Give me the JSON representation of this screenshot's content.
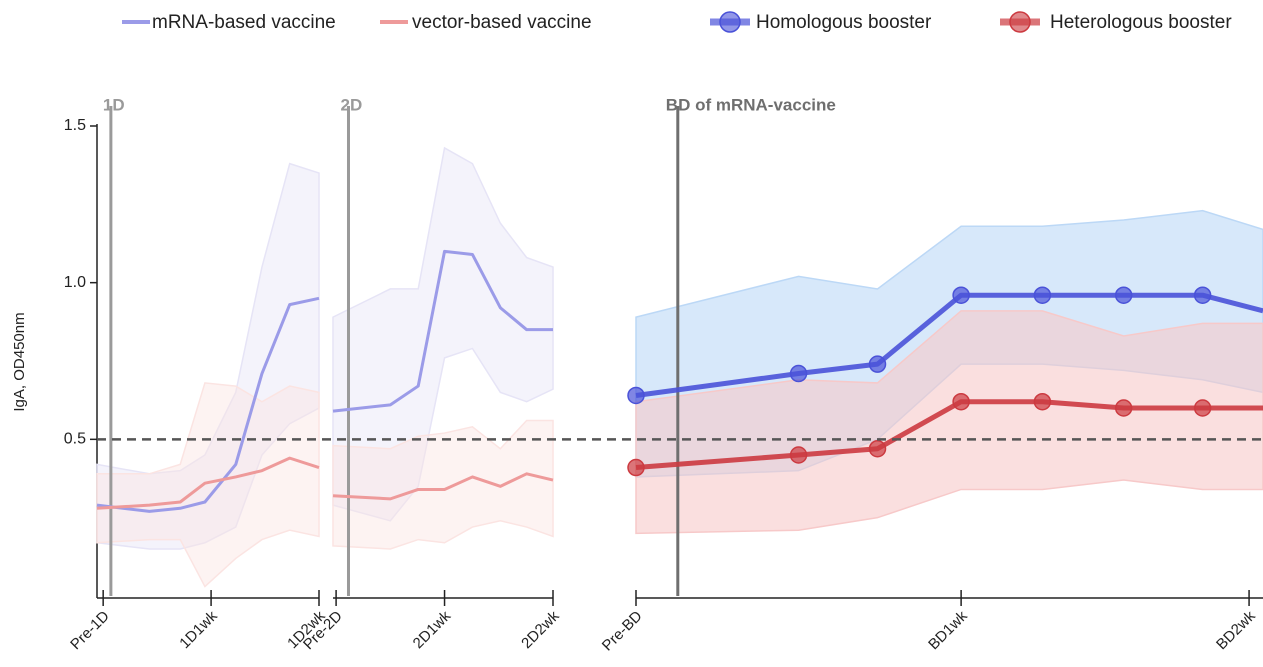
{
  "chart_data": [
    {
      "type": "line",
      "ylabel": "IgA, OD450nm",
      "ylim": [
        0,
        1.5
      ],
      "yticks": [
        0.5,
        {
          "value": 1,
          "label": "1.0"
        },
        1.5
      ],
      "reference_line": 0.5,
      "xlim": [
        -0.4,
        14
      ],
      "xticks": [
        {
          "value": 0,
          "label": "Pre-1D"
        },
        {
          "value": 7,
          "label": "1D1wk"
        },
        {
          "value": 14,
          "label": "1D2wk"
        }
      ],
      "vline": {
        "x": 0.5,
        "label": "1D",
        "color": "#9a9a9a"
      },
      "series": [
        {
          "name": "mRNA-based vaccine",
          "color": "#9b9be8",
          "band_color": "#e6e4f6",
          "x": [
            -0.4,
            3.0,
            5.0,
            6.6,
            8.6,
            10.3,
            12.1,
            14.0
          ],
          "values": [
            0.29,
            0.27,
            0.28,
            0.3,
            0.42,
            0.71,
            0.93,
            0.95
          ],
          "upper": [
            0.42,
            0.39,
            0.4,
            0.45,
            0.65,
            1.05,
            1.38,
            1.35
          ],
          "lower": [
            0.17,
            0.15,
            0.15,
            0.17,
            0.22,
            0.45,
            0.55,
            0.6
          ]
        },
        {
          "name": "vector-based vaccine",
          "color": "#ee9a9a",
          "band_color": "#fbe4e2",
          "x": [
            -0.4,
            3.0,
            5.0,
            6.6,
            8.6,
            10.3,
            12.1,
            14.0
          ],
          "values": [
            0.28,
            0.29,
            0.3,
            0.36,
            0.38,
            0.4,
            0.44,
            0.41
          ],
          "upper": [
            0.39,
            0.39,
            0.42,
            0.68,
            0.67,
            0.62,
            0.67,
            0.65
          ],
          "lower": [
            0.17,
            0.18,
            0.18,
            0.03,
            0.12,
            0.18,
            0.21,
            0.19
          ]
        }
      ]
    },
    {
      "type": "line",
      "ylim": [
        0,
        1.5
      ],
      "xlim": [
        -0.2,
        14
      ],
      "xticks": [
        {
          "value": 0,
          "label": "Pre-2D"
        },
        {
          "value": 7,
          "label": "2D1wk"
        },
        {
          "value": 14,
          "label": "2D2wk"
        }
      ],
      "vline": {
        "x": 0.8,
        "label": "2D",
        "color": "#9a9a9a"
      },
      "series": [
        {
          "color": "#9b9be8",
          "band_color": "#e6e4f6",
          "x": [
            -0.2,
            3.5,
            5.3,
            7.0,
            8.8,
            10.6,
            12.3,
            14.0
          ],
          "values": [
            0.59,
            0.61,
            0.67,
            1.1,
            1.09,
            0.92,
            0.85,
            0.85
          ],
          "upper": [
            0.89,
            0.98,
            0.98,
            1.43,
            1.38,
            1.19,
            1.08,
            1.05
          ],
          "lower": [
            0.29,
            0.24,
            0.35,
            0.76,
            0.79,
            0.65,
            0.62,
            0.66
          ]
        },
        {
          "color": "#ee9a9a",
          "band_color": "#fbe4e2",
          "x": [
            -0.2,
            3.5,
            5.3,
            7.0,
            8.8,
            10.6,
            12.3,
            14.0
          ],
          "values": [
            0.32,
            0.31,
            0.34,
            0.34,
            0.38,
            0.35,
            0.39,
            0.37
          ],
          "upper": [
            0.48,
            0.47,
            0.51,
            0.52,
            0.54,
            0.47,
            0.56,
            0.56
          ],
          "lower": [
            0.16,
            0.15,
            0.18,
            0.17,
            0.22,
            0.24,
            0.22,
            0.19
          ]
        }
      ]
    },
    {
      "type": "line",
      "ylim": [
        0,
        1.5
      ],
      "xlim": [
        0,
        13.5
      ],
      "markers": true,
      "xticks": [
        {
          "value": 0,
          "label": "Pre-BD"
        },
        {
          "value": 7,
          "label": "BD1wk"
        },
        {
          "value": 13.2,
          "label": "BD2wk"
        }
      ],
      "vline": {
        "x": 0.9,
        "label": "BD of mRNA-vaccine",
        "color": "#6f6f6f"
      },
      "series": [
        {
          "name": "Homologous booster",
          "color": "#4a52d8",
          "band_color": "#bcd8f6",
          "x": [
            0,
            3.5,
            5.2,
            7,
            8.75,
            10.5,
            12.2,
            13.5
          ],
          "values": [
            0.64,
            0.71,
            0.74,
            0.96,
            0.96,
            0.96,
            0.96,
            0.91
          ],
          "upper": [
            0.89,
            1.02,
            0.98,
            1.18,
            1.18,
            1.2,
            1.23,
            1.17
          ],
          "lower": [
            0.38,
            0.4,
            0.5,
            0.74,
            0.74,
            0.72,
            0.69,
            0.65
          ]
        },
        {
          "name": "Heterologous booster",
          "color": "#cc3a40",
          "band_color": "#f7c9c9",
          "x": [
            0,
            3.5,
            5.2,
            7,
            8.75,
            10.5,
            12.2,
            13.5
          ],
          "values": [
            0.41,
            0.45,
            0.47,
            0.62,
            0.62,
            0.6,
            0.6,
            0.6
          ],
          "upper": [
            0.62,
            0.69,
            0.68,
            0.91,
            0.91,
            0.83,
            0.87,
            0.87
          ],
          "lower": [
            0.2,
            0.21,
            0.25,
            0.34,
            0.34,
            0.37,
            0.34,
            0.34
          ]
        }
      ]
    }
  ]
}
